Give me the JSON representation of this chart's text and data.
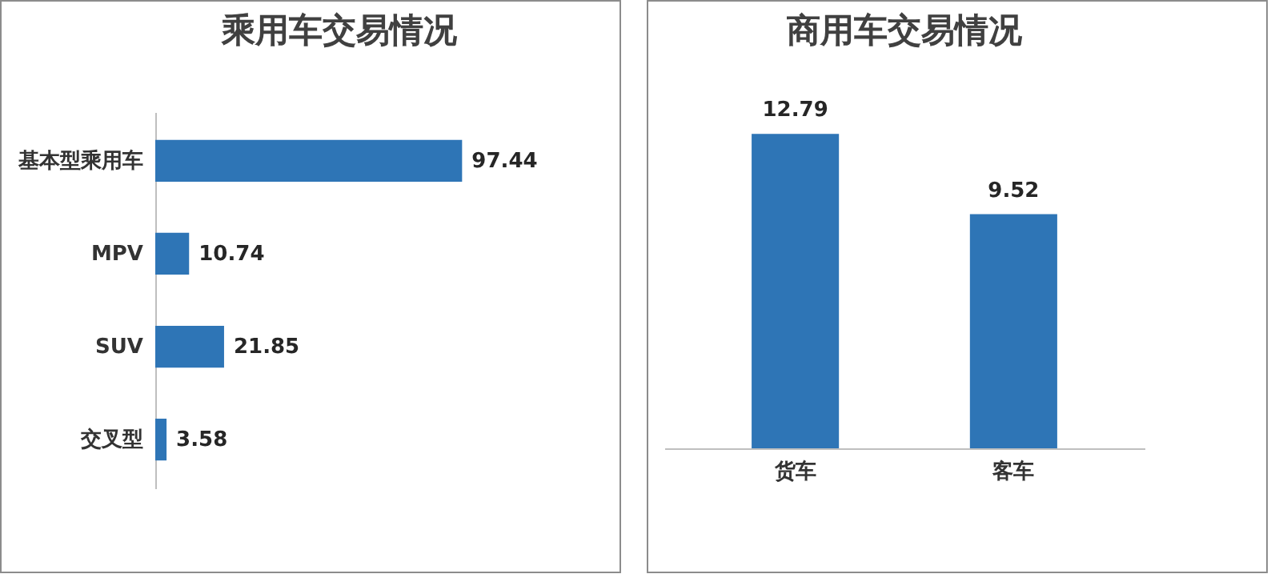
{
  "chart_data": [
    {
      "type": "bar",
      "title": "乘用车交易情况",
      "orientation": "horizontal",
      "categories": [
        "基本型乘用车",
        "MPV",
        "SUV",
        "交叉型"
      ],
      "values": [
        97.44,
        10.74,
        21.85,
        3.58
      ],
      "color": "#2e75b6",
      "data_labels": true
    },
    {
      "type": "bar",
      "title": "商用车交易情况",
      "categories": [
        "货车",
        "客车"
      ],
      "values": [
        12.79,
        9.52
      ],
      "color": "#2e75b6",
      "data_labels": true
    }
  ]
}
